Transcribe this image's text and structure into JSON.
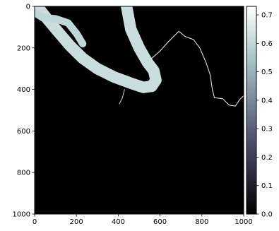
{
  "chart_data": {
    "type": "heatmap",
    "title": "",
    "xlabel": "",
    "ylabel": "",
    "xlim": [
      0,
      1000
    ],
    "ylim": [
      1000,
      0
    ],
    "x_ticks": [
      {
        "value": 0,
        "label": "0"
      },
      {
        "value": 200,
        "label": "200"
      },
      {
        "value": 400,
        "label": "400"
      },
      {
        "value": 600,
        "label": "600"
      },
      {
        "value": 800,
        "label": "800"
      },
      {
        "value": 1000,
        "label": "1000"
      }
    ],
    "y_ticks": [
      {
        "value": 0,
        "label": "0"
      },
      {
        "value": 200,
        "label": "200"
      },
      {
        "value": 400,
        "label": "400"
      },
      {
        "value": 600,
        "label": "600"
      },
      {
        "value": 800,
        "label": "800"
      },
      {
        "value": 1000,
        "label": "1000"
      }
    ],
    "colorbar": {
      "range": [
        0,
        0.73
      ],
      "colormap": "bone",
      "ticks": [
        {
          "value": 0.0,
          "label": "0.0"
        },
        {
          "value": 0.1,
          "label": "0.1"
        },
        {
          "value": 0.2,
          "label": "0.2"
        },
        {
          "value": 0.3,
          "label": "0.3"
        },
        {
          "value": 0.4,
          "label": "0.4"
        },
        {
          "value": 0.5,
          "label": "0.5"
        },
        {
          "value": 0.6,
          "label": "0.6"
        },
        {
          "value": 0.7,
          "label": "0.7"
        }
      ]
    },
    "background_value": 0.0,
    "features": [
      {
        "name": "main-river-band",
        "value": 0.62,
        "width": 55,
        "path": [
          [
            20,
            10
          ],
          [
            60,
            60
          ],
          [
            110,
            120
          ],
          [
            170,
            190
          ],
          [
            230,
            250
          ],
          [
            300,
            300
          ],
          [
            380,
            340
          ],
          [
            460,
            370
          ],
          [
            520,
            390
          ],
          [
            560,
            385
          ],
          [
            580,
            355
          ],
          [
            570,
            310
          ],
          [
            540,
            270
          ],
          [
            500,
            200
          ],
          [
            460,
            110
          ],
          [
            440,
            0
          ]
        ]
      },
      {
        "name": "upper-left-channel",
        "value": 0.6,
        "width": 35,
        "path": [
          [
            0,
            30
          ],
          [
            40,
            55
          ],
          [
            100,
            60
          ],
          [
            160,
            80
          ],
          [
            200,
            130
          ],
          [
            230,
            180
          ]
        ]
      },
      {
        "name": "thin-stream",
        "value": 0.7,
        "width": 3,
        "path": [
          [
            560,
            250
          ],
          [
            600,
            215
          ],
          [
            640,
            170
          ],
          [
            690,
            120
          ],
          [
            720,
            145
          ],
          [
            760,
            160
          ],
          [
            790,
            200
          ],
          [
            820,
            270
          ],
          [
            840,
            330
          ],
          [
            850,
            400
          ],
          [
            860,
            440
          ],
          [
            900,
            445
          ],
          [
            930,
            475
          ],
          [
            960,
            480
          ],
          [
            980,
            450
          ],
          [
            1000,
            430
          ]
        ]
      },
      {
        "name": "spur-stream",
        "value": 0.6,
        "width": 2,
        "path": [
          [
            430,
            400
          ],
          [
            420,
            440
          ],
          [
            405,
            470
          ]
        ]
      }
    ]
  }
}
